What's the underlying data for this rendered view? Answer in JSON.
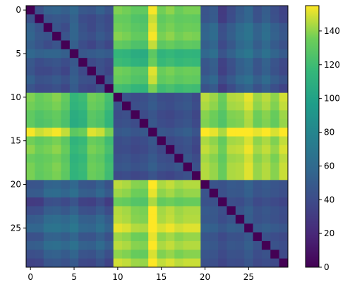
{
  "chart_data": {
    "type": "heatmap",
    "title": "",
    "xlabel": "",
    "ylabel": "",
    "size": 30,
    "x_ticks": [
      0,
      5,
      10,
      15,
      20,
      25
    ],
    "y_ticks": [
      0,
      5,
      10,
      15,
      20,
      25
    ],
    "colorbar": {
      "min": 0,
      "max": 155,
      "ticks": [
        0,
        20,
        40,
        60,
        80,
        100,
        120,
        140
      ]
    },
    "colormap": "viridis",
    "block_structure": {
      "groups": [
        {
          "start": 0,
          "end": 9
        },
        {
          "start": 10,
          "end": 19
        },
        {
          "start": 20,
          "end": 29
        }
      ],
      "within_group_level": 45,
      "between_groups_0_2_level": 55,
      "between_group_1_level": 120
    },
    "diagonal_value": 0,
    "values": [
      [
        0,
        43,
        54,
        56,
        52,
        58,
        48,
        46,
        53,
        45,
        138,
        136,
        131,
        131,
        154,
        136,
        140,
        134,
        137,
        137,
        45,
        49,
        30,
        40,
        50,
        57,
        43,
        51,
        42,
        35
      ],
      [
        43,
        0,
        45,
        48,
        46,
        54,
        41,
        38,
        44,
        39,
        133,
        132,
        126,
        125,
        148,
        131,
        135,
        131,
        132,
        131,
        46,
        50,
        31,
        41,
        51,
        57,
        44,
        52,
        43,
        36
      ],
      [
        54,
        45,
        0,
        46,
        40,
        56,
        44,
        38,
        45,
        40,
        136,
        134,
        129,
        127,
        151,
        134,
        137,
        133,
        135,
        134,
        55,
        60,
        42,
        51,
        60,
        66,
        54,
        62,
        53,
        46
      ],
      [
        56,
        48,
        46,
        0,
        45,
        56,
        46,
        42,
        49,
        43,
        139,
        137,
        132,
        131,
        154,
        137,
        140,
        136,
        138,
        137,
        56,
        61,
        43,
        52,
        62,
        67,
        55,
        63,
        54,
        47
      ],
      [
        52,
        46,
        40,
        45,
        0,
        52,
        41,
        36,
        43,
        37,
        132,
        130,
        125,
        124,
        147,
        130,
        133,
        129,
        131,
        130,
        52,
        57,
        39,
        48,
        58,
        63,
        51,
        59,
        50,
        43
      ],
      [
        58,
        54,
        56,
        56,
        52,
        0,
        48,
        50,
        52,
        50,
        115,
        113,
        108,
        107,
        130,
        113,
        116,
        112,
        114,
        113,
        58,
        63,
        45,
        54,
        64,
        69,
        57,
        65,
        56,
        49
      ],
      [
        48,
        41,
        44,
        46,
        41,
        48,
        0,
        39,
        43,
        38,
        119,
        117,
        112,
        111,
        134,
        117,
        120,
        116,
        118,
        117,
        47,
        52,
        34,
        43,
        53,
        58,
        46,
        54,
        45,
        38
      ],
      [
        46,
        38,
        38,
        42,
        36,
        50,
        39,
        0,
        42,
        36,
        136,
        134,
        129,
        128,
        151,
        134,
        137,
        133,
        135,
        134,
        46,
        51,
        33,
        42,
        52,
        57,
        45,
        53,
        44,
        37
      ],
      [
        53,
        44,
        45,
        49,
        43,
        52,
        43,
        42,
        0,
        44,
        133,
        131,
        126,
        125,
        148,
        131,
        134,
        130,
        132,
        131,
        53,
        58,
        40,
        49,
        59,
        64,
        52,
        60,
        51,
        44
      ],
      [
        45,
        39,
        40,
        43,
        37,
        50,
        38,
        36,
        44,
        0,
        122,
        120,
        115,
        114,
        137,
        120,
        123,
        119,
        121,
        120,
        44,
        49,
        31,
        40,
        50,
        55,
        43,
        51,
        42,
        35
      ],
      [
        138,
        133,
        136,
        139,
        132,
        115,
        119,
        136,
        133,
        122,
        0,
        44,
        40,
        42,
        48,
        41,
        40,
        43,
        46,
        39,
        146,
        142,
        134,
        145,
        146,
        152,
        142,
        146,
        140,
        149
      ],
      [
        136,
        132,
        134,
        137,
        130,
        113,
        117,
        134,
        131,
        120,
        44,
        0,
        42,
        44,
        50,
        43,
        41,
        45,
        48,
        41,
        144,
        140,
        132,
        143,
        144,
        150,
        140,
        144,
        138,
        147
      ],
      [
        131,
        126,
        129,
        132,
        125,
        108,
        112,
        129,
        126,
        115,
        40,
        42,
        0,
        40,
        46,
        39,
        37,
        41,
        44,
        37,
        139,
        135,
        127,
        138,
        139,
        145,
        135,
        139,
        133,
        142
      ],
      [
        131,
        125,
        127,
        131,
        124,
        107,
        111,
        128,
        125,
        114,
        42,
        44,
        40,
        0,
        48,
        41,
        39,
        43,
        46,
        39,
        138,
        134,
        126,
        137,
        138,
        144,
        134,
        138,
        132,
        141
      ],
      [
        154,
        148,
        151,
        154,
        147,
        130,
        134,
        151,
        148,
        137,
        48,
        50,
        46,
        48,
        0,
        47,
        45,
        49,
        52,
        45,
        155,
        152,
        144,
        155,
        155,
        155,
        152,
        155,
        150,
        155
      ],
      [
        136,
        131,
        134,
        137,
        130,
        113,
        117,
        134,
        131,
        120,
        41,
        43,
        39,
        41,
        47,
        0,
        38,
        42,
        45,
        38,
        144,
        140,
        132,
        143,
        144,
        150,
        140,
        144,
        138,
        147
      ],
      [
        140,
        135,
        137,
        140,
        133,
        116,
        120,
        137,
        134,
        123,
        40,
        41,
        37,
        39,
        45,
        38,
        0,
        40,
        43,
        36,
        147,
        143,
        135,
        146,
        147,
        153,
        143,
        147,
        141,
        150
      ],
      [
        134,
        131,
        133,
        136,
        129,
        112,
        116,
        133,
        130,
        119,
        43,
        45,
        41,
        43,
        49,
        42,
        40,
        0,
        47,
        40,
        143,
        139,
        131,
        142,
        143,
        149,
        139,
        143,
        137,
        146
      ],
      [
        137,
        132,
        135,
        138,
        131,
        114,
        118,
        135,
        132,
        121,
        46,
        48,
        44,
        46,
        52,
        45,
        43,
        47,
        0,
        43,
        145,
        141,
        133,
        144,
        145,
        151,
        141,
        145,
        139,
        148
      ],
      [
        137,
        131,
        134,
        137,
        130,
        113,
        117,
        134,
        131,
        120,
        39,
        41,
        37,
        39,
        45,
        38,
        36,
        40,
        43,
        0,
        145,
        141,
        133,
        144,
        145,
        151,
        141,
        145,
        139,
        148
      ],
      [
        45,
        46,
        55,
        56,
        52,
        58,
        47,
        46,
        53,
        44,
        146,
        144,
        139,
        138,
        155,
        144,
        147,
        143,
        145,
        145,
        0,
        45,
        44,
        49,
        48,
        54,
        46,
        49,
        46,
        43
      ],
      [
        49,
        50,
        60,
        61,
        57,
        63,
        52,
        51,
        58,
        49,
        142,
        140,
        135,
        134,
        152,
        140,
        143,
        139,
        141,
        141,
        45,
        0,
        43,
        48,
        47,
        53,
        45,
        48,
        45,
        42
      ],
      [
        30,
        31,
        42,
        43,
        39,
        45,
        34,
        33,
        40,
        31,
        134,
        132,
        127,
        126,
        144,
        132,
        135,
        131,
        133,
        133,
        44,
        43,
        0,
        42,
        41,
        47,
        39,
        42,
        39,
        36
      ],
      [
        40,
        41,
        51,
        52,
        48,
        54,
        43,
        42,
        49,
        40,
        145,
        143,
        138,
        137,
        155,
        143,
        146,
        142,
        144,
        144,
        49,
        48,
        42,
        0,
        46,
        52,
        44,
        47,
        44,
        41
      ],
      [
        50,
        51,
        60,
        62,
        58,
        64,
        53,
        52,
        59,
        50,
        146,
        144,
        139,
        138,
        155,
        144,
        147,
        143,
        145,
        145,
        48,
        47,
        41,
        46,
        0,
        51,
        43,
        46,
        43,
        40
      ],
      [
        57,
        57,
        66,
        67,
        63,
        69,
        58,
        57,
        64,
        55,
        152,
        150,
        145,
        144,
        155,
        150,
        153,
        149,
        151,
        151,
        54,
        53,
        47,
        52,
        51,
        0,
        49,
        52,
        49,
        46
      ],
      [
        43,
        44,
        54,
        55,
        51,
        57,
        46,
        45,
        52,
        43,
        142,
        140,
        135,
        134,
        152,
        140,
        143,
        139,
        141,
        141,
        46,
        45,
        39,
        44,
        43,
        49,
        0,
        44,
        41,
        38
      ],
      [
        51,
        52,
        62,
        63,
        59,
        65,
        54,
        53,
        60,
        51,
        146,
        144,
        139,
        138,
        155,
        144,
        147,
        143,
        145,
        145,
        49,
        48,
        42,
        47,
        46,
        52,
        44,
        0,
        44,
        41
      ],
      [
        42,
        43,
        53,
        54,
        50,
        56,
        45,
        44,
        51,
        42,
        140,
        138,
        133,
        132,
        150,
        138,
        141,
        137,
        139,
        139,
        46,
        45,
        39,
        44,
        43,
        49,
        41,
        44,
        0,
        38
      ],
      [
        35,
        36,
        46,
        47,
        43,
        49,
        38,
        37,
        44,
        35,
        149,
        147,
        142,
        141,
        155,
        147,
        150,
        146,
        148,
        148,
        43,
        42,
        36,
        41,
        40,
        46,
        38,
        41,
        38,
        0
      ]
    ]
  }
}
